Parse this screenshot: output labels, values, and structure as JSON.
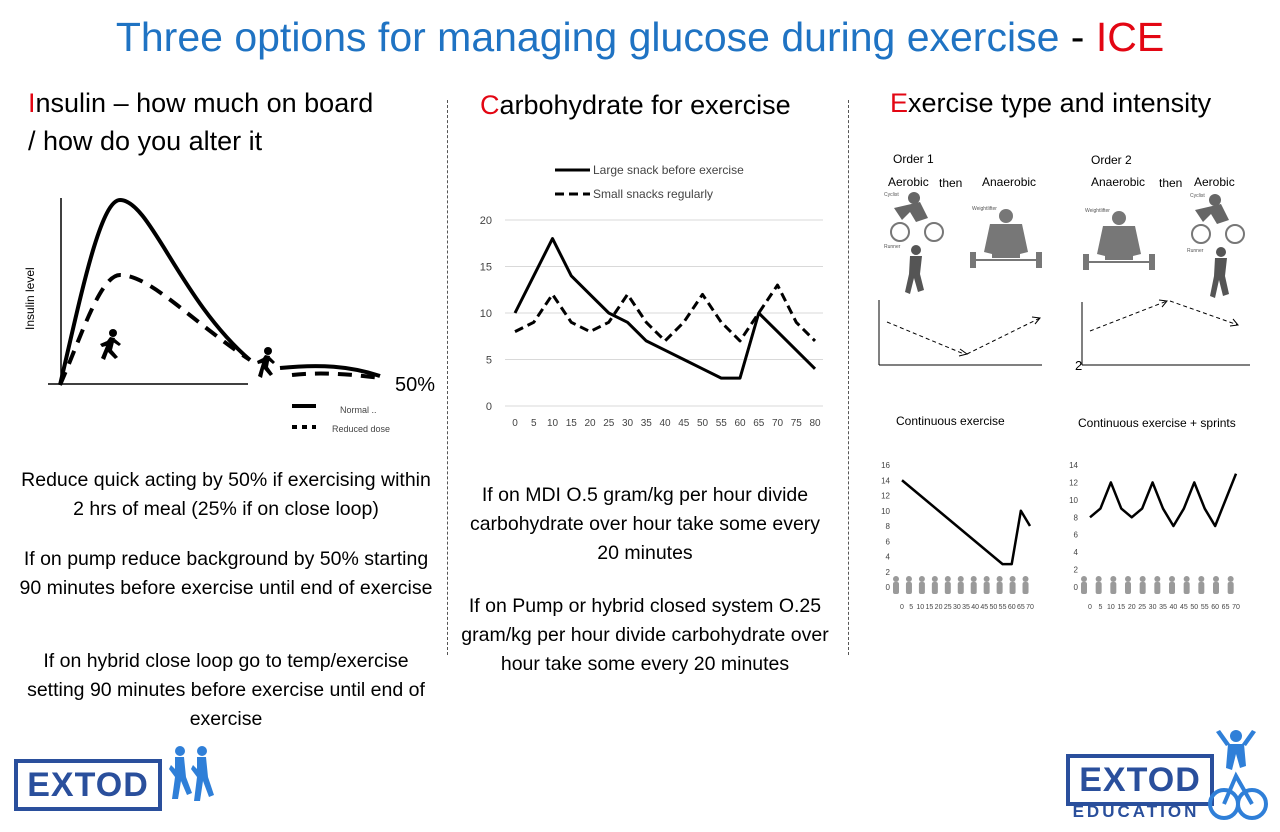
{
  "title": {
    "main": "Three options for managing glucose during exercise",
    "dash": " - ",
    "ice": "ICE"
  },
  "insulin": {
    "heading_initial": "I",
    "heading_rest_line1": "nsulin – how much on board",
    "heading_line2": "/ how do you alter it",
    "ylabel": "Insulin level",
    "percent_label": "50%",
    "legend_normal": "Normal ..",
    "legend_reduced": "Reduced dose",
    "para1": "Reduce quick acting by 50% if exercising within 2 hrs of meal (25% if on close loop)",
    "para2": "If on pump reduce background by 50% starting 90 minutes before exercise until end of exercise",
    "para3": "If on hybrid close loop go to temp/exercise setting 90 minutes before exercise until end of exercise"
  },
  "carb": {
    "heading_initial": "C",
    "heading_rest": "arbohydrate for exercise",
    "para1": "If on MDI O.5 gram/kg per hour divide carbohydrate over hour take some every 20 minutes",
    "para2": "If on Pump or hybrid closed system O.25 gram/kg per hour divide carbohydrate over hour take some every 20 minutes"
  },
  "exercise": {
    "heading_initial": "E",
    "heading_rest": "xercise type and intensity",
    "order1": {
      "label": "Order 1",
      "first": "Aerobic",
      "then": "then",
      "second": "Anaerobic"
    },
    "order2": {
      "label": "Order 2",
      "first": "Anaerobic",
      "then": "then",
      "second": "Aerobic"
    },
    "order2_axis_label": "2",
    "cont_label": "Continuous exercise",
    "sprints_label": "Continuous  exercise + sprints",
    "cyclist_label": "Cyclist",
    "runner_label": "Runner",
    "weightlifter_label": "Weightlifter"
  },
  "logos": {
    "left": "EXTOD",
    "right": "EXTOD",
    "right_sub": "EDUCATION"
  },
  "chart_data": [
    {
      "type": "line",
      "x": [
        0,
        5,
        10,
        15,
        20,
        25,
        30,
        35,
        40,
        45,
        50,
        55,
        60,
        65,
        70,
        75,
        80
      ],
      "series": [
        {
          "name": "Large snack before exercise",
          "values": [
            10,
            14,
            18,
            14,
            12,
            10,
            9,
            7,
            6,
            5,
            4,
            3,
            3,
            10,
            8,
            6,
            4
          ]
        },
        {
          "name": "Small snacks regularly",
          "values": [
            8,
            9,
            12,
            9,
            8,
            9,
            12,
            9,
            7,
            9,
            12,
            9,
            7,
            10,
            13,
            9,
            7
          ]
        }
      ],
      "yticks": [
        0,
        5,
        10,
        15,
        20
      ],
      "ylim": [
        0,
        20
      ],
      "grid": true,
      "legend_position": "top"
    },
    {
      "type": "line",
      "x": [
        0,
        5,
        10,
        15,
        20,
        25,
        30,
        35,
        40,
        45,
        50,
        55,
        60,
        65,
        70
      ],
      "series": [
        {
          "values": [
            14,
            13,
            12,
            11,
            10,
            9,
            8,
            7,
            6,
            5,
            4,
            3,
            3,
            10,
            8
          ]
        }
      ],
      "yticks": [
        0,
        2,
        4,
        6,
        8,
        10,
        12,
        14,
        16
      ],
      "ylim": [
        0,
        16
      ]
    },
    {
      "type": "line",
      "x": [
        0,
        5,
        10,
        15,
        20,
        25,
        30,
        35,
        40,
        45,
        50,
        55,
        60,
        65,
        70
      ],
      "series": [
        {
          "values": [
            8,
            9,
            12,
            9,
            8,
            9,
            12,
            9,
            7,
            9,
            12,
            9,
            7,
            10,
            13
          ]
        }
      ],
      "yticks": [
        0,
        2,
        4,
        6,
        8,
        10,
        12,
        14
      ],
      "ylim": [
        0,
        14
      ]
    }
  ]
}
